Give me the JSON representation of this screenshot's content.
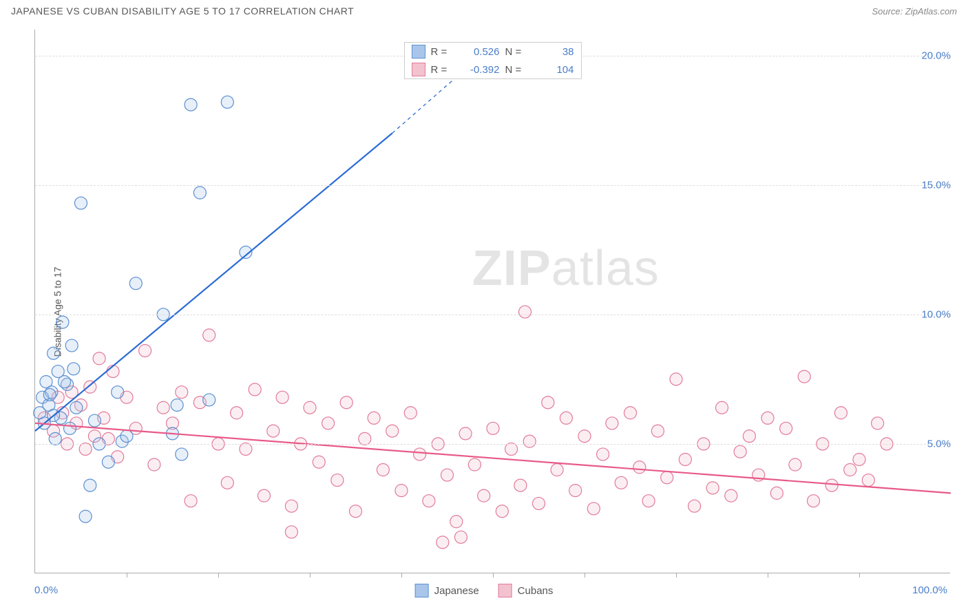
{
  "header": {
    "title": "JAPANESE VS CUBAN DISABILITY AGE 5 TO 17 CORRELATION CHART",
    "source": "Source: ZipAtlas.com"
  },
  "watermark": {
    "bold": "ZIP",
    "rest": "atlas"
  },
  "chart": {
    "type": "scatter",
    "ylabel": "Disability Age 5 to 17",
    "xlim": [
      0,
      100
    ],
    "ylim": [
      0,
      21
    ],
    "y_axis_ticks": [
      {
        "v": 5,
        "label": "5.0%"
      },
      {
        "v": 10,
        "label": "10.0%"
      },
      {
        "v": 15,
        "label": "15.0%"
      },
      {
        "v": 20,
        "label": "20.0%"
      }
    ],
    "x_axis_label_left": "0.0%",
    "x_axis_label_right": "100.0%",
    "x_tick_positions": [
      10,
      20,
      30,
      40,
      50,
      60,
      70,
      80,
      90
    ],
    "grid_color": "#dddddd",
    "background_color": "#ffffff",
    "axis_value_color": "#4a7ec9",
    "marker_radius": 9,
    "marker_stroke_width": 1.2,
    "marker_fill_opacity": 0.28,
    "line_width": 2.2,
    "series": [
      {
        "name": "Japanese",
        "fill_color": "#a9c6ea",
        "stroke_color": "#5b8fd0",
        "line_color": "#2a6bd4",
        "R": "0.526",
        "N": "38",
        "trend": {
          "x1": 0,
          "y1": 5.5,
          "x2": 39,
          "y2": 17.0,
          "dash_x2": 50,
          "dash_y2": 20.4
        },
        "points": [
          [
            0.5,
            6.2
          ],
          [
            0.8,
            6.8
          ],
          [
            1.0,
            5.8
          ],
          [
            1.2,
            7.4
          ],
          [
            1.5,
            6.5
          ],
          [
            1.8,
            7.0
          ],
          [
            2.0,
            8.5
          ],
          [
            2.2,
            5.2
          ],
          [
            2.5,
            7.8
          ],
          [
            2.8,
            6.0
          ],
          [
            3.0,
            9.7
          ],
          [
            3.5,
            7.3
          ],
          [
            3.8,
            5.6
          ],
          [
            4.0,
            8.8
          ],
          [
            4.5,
            6.4
          ],
          [
            5.0,
            14.3
          ],
          [
            5.5,
            2.2
          ],
          [
            6.0,
            3.4
          ],
          [
            7.0,
            5.0
          ],
          [
            8.0,
            4.3
          ],
          [
            9.0,
            7.0
          ],
          [
            9.5,
            5.1
          ],
          [
            10.0,
            5.3
          ],
          [
            11.0,
            11.2
          ],
          [
            14.0,
            10.0
          ],
          [
            15.0,
            5.4
          ],
          [
            15.5,
            6.5
          ],
          [
            16.0,
            4.6
          ],
          [
            17.0,
            18.1
          ],
          [
            18.0,
            14.7
          ],
          [
            19.0,
            6.7
          ],
          [
            21.0,
            18.2
          ],
          [
            23.0,
            12.4
          ],
          [
            4.2,
            7.9
          ],
          [
            6.5,
            5.9
          ],
          [
            3.2,
            7.4
          ],
          [
            2.0,
            6.1
          ],
          [
            1.6,
            6.9
          ]
        ]
      },
      {
        "name": "Cubans",
        "fill_color": "#f2c2cf",
        "stroke_color": "#e27a99",
        "line_color": "#e85a88",
        "R": "-0.392",
        "N": "104",
        "trend": {
          "x1": 0,
          "y1": 5.8,
          "x2": 100,
          "y2": 3.1
        },
        "points": [
          [
            1,
            6.0
          ],
          [
            2,
            5.5
          ],
          [
            2.5,
            6.8
          ],
          [
            3,
            6.2
          ],
          [
            3.5,
            5.0
          ],
          [
            4,
            7.0
          ],
          [
            4.5,
            5.8
          ],
          [
            5,
            6.5
          ],
          [
            5.5,
            4.8
          ],
          [
            6,
            7.2
          ],
          [
            6.5,
            5.3
          ],
          [
            7,
            8.3
          ],
          [
            7.5,
            6.0
          ],
          [
            8,
            5.2
          ],
          [
            8.5,
            7.8
          ],
          [
            9,
            4.5
          ],
          [
            10,
            6.8
          ],
          [
            11,
            5.6
          ],
          [
            12,
            8.6
          ],
          [
            13,
            4.2
          ],
          [
            14,
            6.4
          ],
          [
            15,
            5.8
          ],
          [
            16,
            7.0
          ],
          [
            17,
            2.8
          ],
          [
            18,
            6.6
          ],
          [
            19,
            9.2
          ],
          [
            20,
            5.0
          ],
          [
            21,
            3.5
          ],
          [
            22,
            6.2
          ],
          [
            23,
            4.8
          ],
          [
            24,
            7.1
          ],
          [
            25,
            3.0
          ],
          [
            26,
            5.5
          ],
          [
            27,
            6.8
          ],
          [
            28,
            2.6
          ],
          [
            29,
            5.0
          ],
          [
            30,
            6.4
          ],
          [
            31,
            4.3
          ],
          [
            32,
            5.8
          ],
          [
            33,
            3.6
          ],
          [
            34,
            6.6
          ],
          [
            35,
            2.4
          ],
          [
            36,
            5.2
          ],
          [
            37,
            6.0
          ],
          [
            38,
            4.0
          ],
          [
            39,
            5.5
          ],
          [
            40,
            3.2
          ],
          [
            41,
            6.2
          ],
          [
            42,
            4.6
          ],
          [
            43,
            2.8
          ],
          [
            44,
            5.0
          ],
          [
            44.5,
            1.2
          ],
          [
            45,
            3.8
          ],
          [
            46,
            2.0
          ],
          [
            46.5,
            1.4
          ],
          [
            47,
            5.4
          ],
          [
            48,
            4.2
          ],
          [
            49,
            3.0
          ],
          [
            50,
            5.6
          ],
          [
            51,
            2.4
          ],
          [
            52,
            4.8
          ],
          [
            53,
            3.4
          ],
          [
            53.5,
            10.1
          ],
          [
            54,
            5.1
          ],
          [
            55,
            2.7
          ],
          [
            56,
            6.6
          ],
          [
            57,
            4.0
          ],
          [
            58,
            6.0
          ],
          [
            59,
            3.2
          ],
          [
            60,
            5.3
          ],
          [
            61,
            2.5
          ],
          [
            62,
            4.6
          ],
          [
            63,
            5.8
          ],
          [
            64,
            3.5
          ],
          [
            65,
            6.2
          ],
          [
            66,
            4.1
          ],
          [
            67,
            2.8
          ],
          [
            68,
            5.5
          ],
          [
            69,
            3.7
          ],
          [
            70,
            7.5
          ],
          [
            71,
            4.4
          ],
          [
            72,
            2.6
          ],
          [
            73,
            5.0
          ],
          [
            74,
            3.3
          ],
          [
            75,
            6.4
          ],
          [
            76,
            3.0
          ],
          [
            77,
            4.7
          ],
          [
            78,
            5.3
          ],
          [
            79,
            3.8
          ],
          [
            80,
            6.0
          ],
          [
            81,
            3.1
          ],
          [
            82,
            5.6
          ],
          [
            83,
            4.2
          ],
          [
            84,
            7.6
          ],
          [
            85,
            2.8
          ],
          [
            86,
            5.0
          ],
          [
            87,
            3.4
          ],
          [
            88,
            6.2
          ],
          [
            89,
            4.0
          ],
          [
            90,
            4.4
          ],
          [
            91,
            3.6
          ],
          [
            92,
            5.8
          ],
          [
            93,
            5.0
          ],
          [
            28,
            1.6
          ]
        ]
      }
    ],
    "legend_bottom": [
      {
        "name": "Japanese",
        "fill": "#a9c6ea",
        "stroke": "#5b8fd0"
      },
      {
        "name": "Cubans",
        "fill": "#f2c2cf",
        "stroke": "#e27a99"
      }
    ]
  }
}
